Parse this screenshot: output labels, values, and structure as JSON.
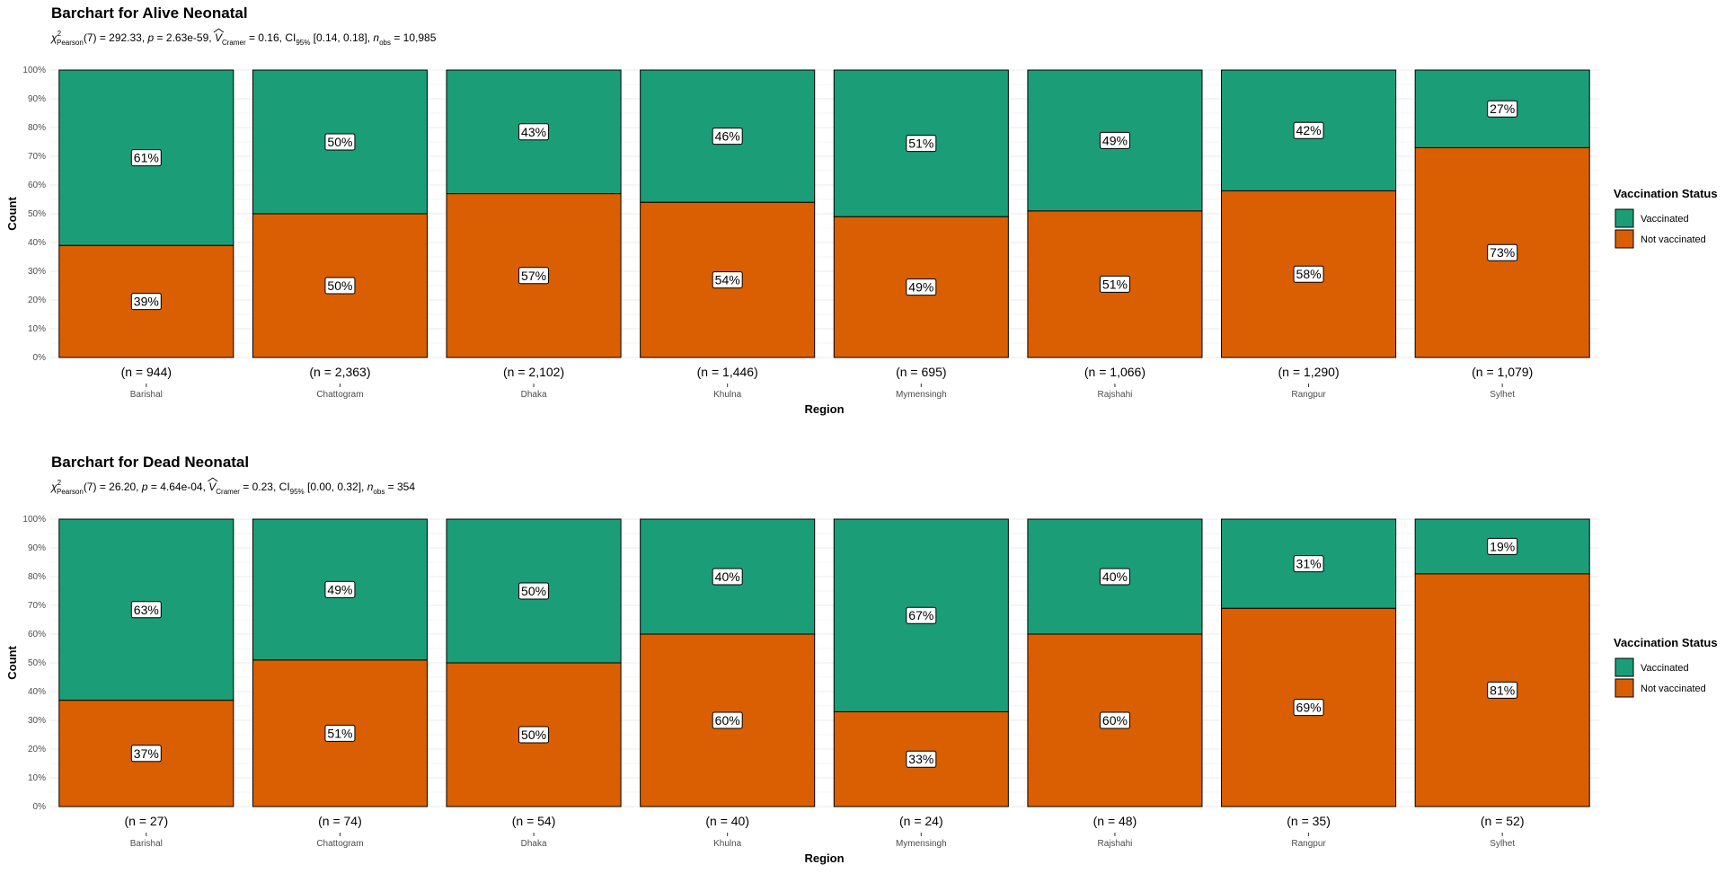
{
  "colors": {
    "vaccinated": "#1B9E77",
    "not_vaccinated": "#D95F02",
    "grid": "#ebebeb"
  },
  "chart_data": [
    {
      "type": "bar",
      "stacked": "percent",
      "title": "Barchart for Alive Neonatal",
      "subtitle": {
        "chi_sym": "χ",
        "chi_sup": "2",
        "chi_sub": "Pearson",
        "part1": "(7) = 292.33, ",
        "p_sym": "p",
        "part2": " = 2.63e-59, ",
        "v_sym": "V",
        "v_sub": "Cramer",
        "part3": " = 0.16, CI",
        "ci_sub": "95%",
        "part4": " [0.14, 0.18], ",
        "n_sym": "n",
        "n_sub": "obs",
        "part5": " = 10,985"
      },
      "xlabel": "Region",
      "ylabel": "Count",
      "ylim": [
        0,
        100
      ],
      "yticks": [
        "0%",
        "10%",
        "20%",
        "30%",
        "40%",
        "50%",
        "60%",
        "70%",
        "80%",
        "90%",
        "100%"
      ],
      "categories": [
        "Barishal",
        "Chattogram",
        "Dhaka",
        "Khulna",
        "Mymensingh",
        "Rajshahi",
        "Rangpur",
        "Sylhet"
      ],
      "counts": [
        "(n = 944)",
        "(n = 2,363)",
        "(n = 2,102)",
        "(n = 1,446)",
        "(n = 695)",
        "(n = 1,066)",
        "(n = 1,290)",
        "(n = 1,079)"
      ],
      "series": [
        {
          "name": "Not vaccinated",
          "values": [
            39,
            50,
            57,
            54,
            49,
            51,
            58,
            73
          ],
          "labels": [
            "39%",
            "50%",
            "57%",
            "54%",
            "49%",
            "51%",
            "58%",
            "73%"
          ]
        },
        {
          "name": "Vaccinated",
          "values": [
            61,
            50,
            43,
            46,
            51,
            49,
            42,
            27
          ],
          "labels": [
            "61%",
            "50%",
            "43%",
            "46%",
            "51%",
            "49%",
            "42%",
            "27%"
          ]
        }
      ],
      "legend": {
        "title": "Vaccination Status",
        "items": [
          "Vaccinated",
          "Not vaccinated"
        ],
        "position": "right"
      }
    },
    {
      "type": "bar",
      "stacked": "percent",
      "title": "Barchart for Dead Neonatal",
      "subtitle": {
        "chi_sym": "χ",
        "chi_sup": "2",
        "chi_sub": "Pearson",
        "part1": "(7) = 26.20, ",
        "p_sym": "p",
        "part2": " = 4.64e-04, ",
        "v_sym": "V",
        "v_sub": "Cramer",
        "part3": " = 0.23, CI",
        "ci_sub": "95%",
        "part4": " [0.00, 0.32], ",
        "n_sym": "n",
        "n_sub": "obs",
        "part5": " = 354"
      },
      "xlabel": "Region",
      "ylabel": "Count",
      "ylim": [
        0,
        100
      ],
      "yticks": [
        "0%",
        "10%",
        "20%",
        "30%",
        "40%",
        "50%",
        "60%",
        "70%",
        "80%",
        "90%",
        "100%"
      ],
      "categories": [
        "Barishal",
        "Chattogram",
        "Dhaka",
        "Khulna",
        "Mymensingh",
        "Rajshahi",
        "Rangpur",
        "Sylhet"
      ],
      "counts": [
        "(n = 27)",
        "(n = 74)",
        "(n = 54)",
        "(n = 40)",
        "(n = 24)",
        "(n = 48)",
        "(n = 35)",
        "(n = 52)"
      ],
      "series": [
        {
          "name": "Not vaccinated",
          "values": [
            37,
            51,
            50,
            60,
            33,
            60,
            69,
            81
          ],
          "labels": [
            "37%",
            "51%",
            "50%",
            "60%",
            "33%",
            "60%",
            "69%",
            "81%"
          ]
        },
        {
          "name": "Vaccinated",
          "values": [
            63,
            49,
            50,
            40,
            67,
            40,
            31,
            19
          ],
          "labels": [
            "63%",
            "49%",
            "50%",
            "40%",
            "67%",
            "40%",
            "31%",
            "19%"
          ]
        }
      ],
      "legend": {
        "title": "Vaccination Status",
        "items": [
          "Vaccinated",
          "Not vaccinated"
        ],
        "position": "right"
      }
    }
  ]
}
